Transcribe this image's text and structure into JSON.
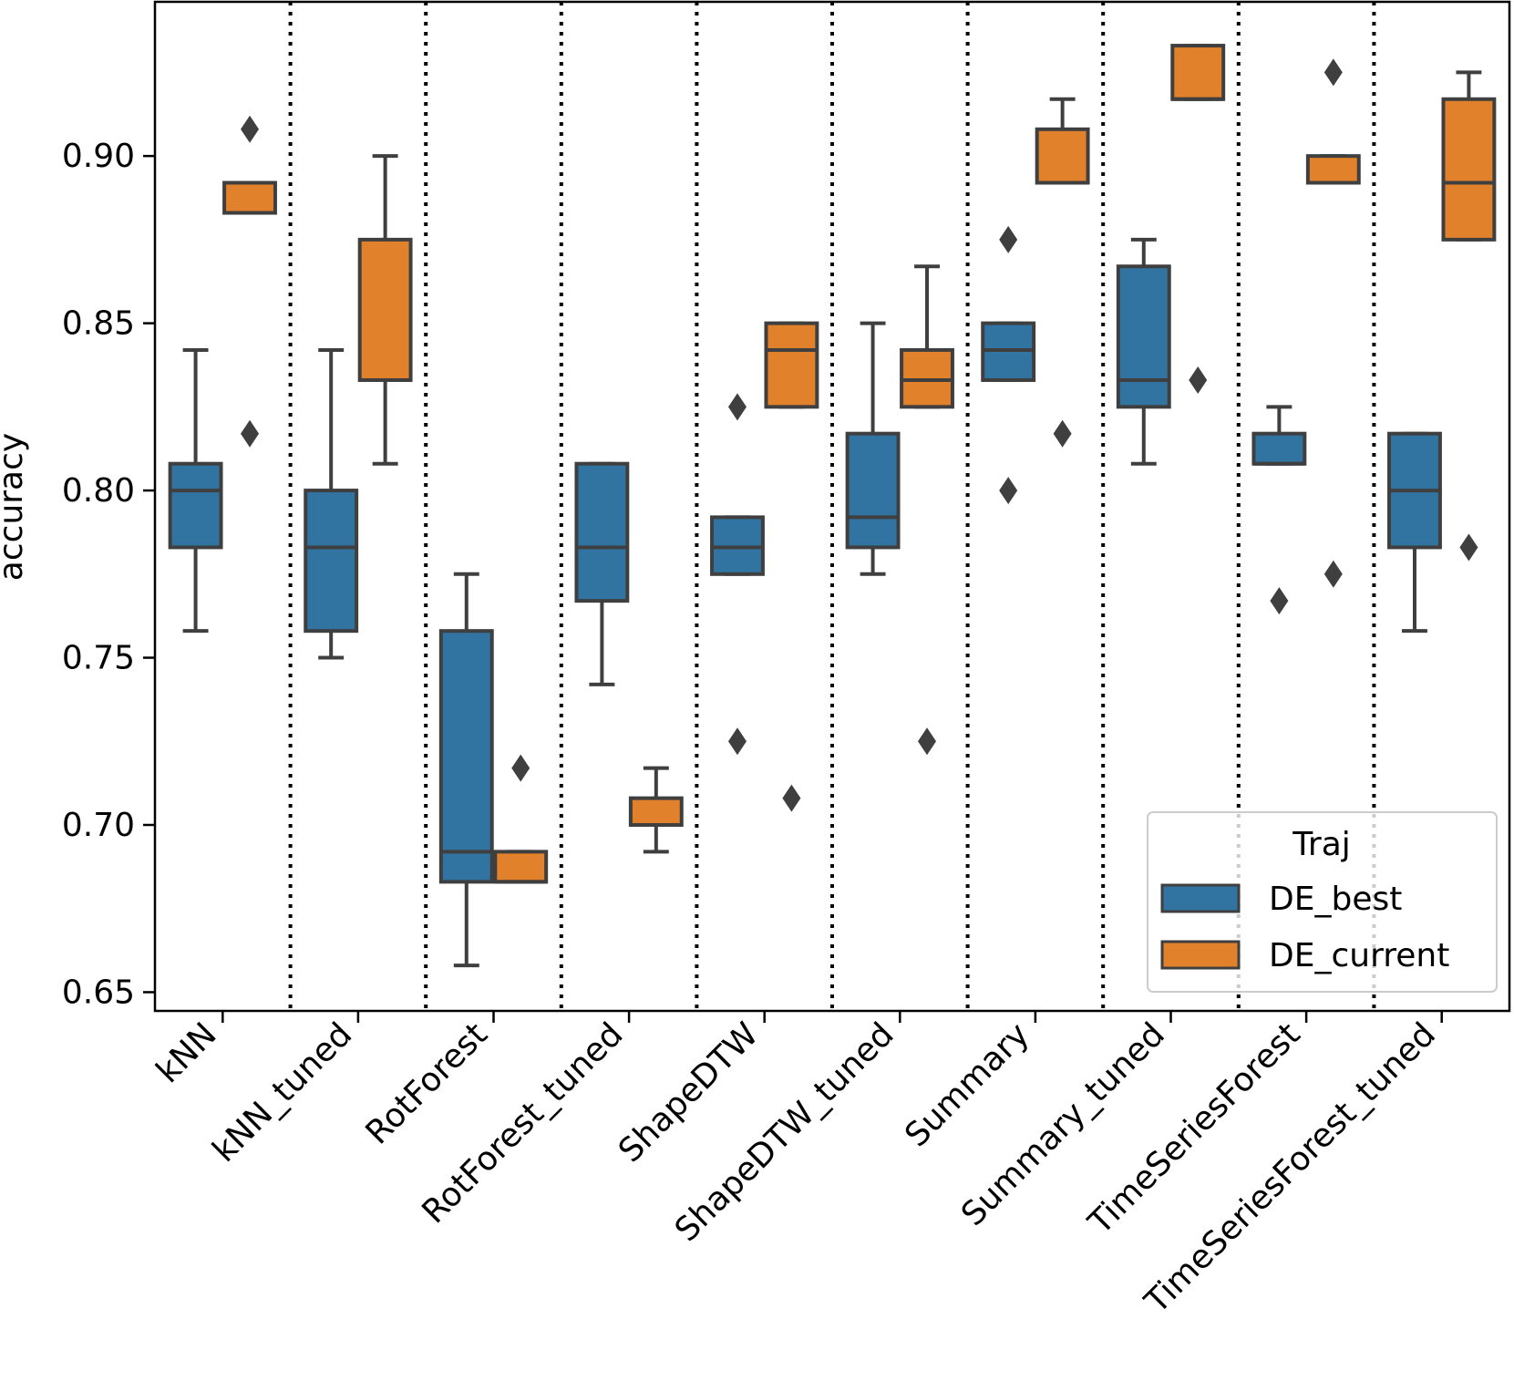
{
  "chart_data": {
    "type": "box",
    "ylabel": "accuracy",
    "xlabel": "",
    "ylim": [
      0.6444,
      0.9461
    ],
    "yticks": [
      0.65,
      0.7,
      0.75,
      0.8,
      0.85,
      0.9
    ],
    "ytick_labels": [
      "0.65",
      "0.70",
      "0.75",
      "0.80",
      "0.85",
      "0.90"
    ],
    "grid": false,
    "separators": "dotted vertical lines between categories",
    "legend": {
      "title": "Traj",
      "position": "lower-right",
      "entries": [
        "DE_best",
        "DE_current"
      ]
    },
    "categories": [
      "kNN",
      "kNN_tuned",
      "RotForest",
      "RotForest_tuned",
      "ShapeDTW",
      "ShapeDTW_tuned",
      "Summary",
      "Summary_tuned",
      "TimeSeriesForest",
      "TimeSeriesForest_tuned"
    ],
    "series": [
      {
        "name": "DE_best",
        "color": "#3274a1",
        "boxes": [
          {
            "whislo": 0.758,
            "q1": 0.783,
            "med": 0.8,
            "q3": 0.808,
            "whishi": 0.842,
            "fliers": []
          },
          {
            "whislo": 0.75,
            "q1": 0.758,
            "med": 0.783,
            "q3": 0.8,
            "whishi": 0.842,
            "fliers": []
          },
          {
            "whislo": 0.658,
            "q1": 0.683,
            "med": 0.692,
            "q3": 0.758,
            "whishi": 0.775,
            "fliers": []
          },
          {
            "whislo": 0.742,
            "q1": 0.767,
            "med": 0.783,
            "q3": 0.808,
            "whishi": 0.808,
            "fliers": []
          },
          {
            "whislo": 0.775,
            "q1": 0.775,
            "med": 0.783,
            "q3": 0.792,
            "whishi": 0.792,
            "fliers": [
              0.825,
              0.725
            ]
          },
          {
            "whislo": 0.775,
            "q1": 0.783,
            "med": 0.792,
            "q3": 0.817,
            "whishi": 0.85,
            "fliers": []
          },
          {
            "whislo": 0.833,
            "q1": 0.833,
            "med": 0.842,
            "q3": 0.85,
            "whishi": 0.85,
            "fliers": [
              0.875,
              0.8
            ]
          },
          {
            "whislo": 0.808,
            "q1": 0.825,
            "med": 0.833,
            "q3": 0.867,
            "whishi": 0.875,
            "fliers": []
          },
          {
            "whislo": 0.808,
            "q1": 0.808,
            "med": 0.808,
            "q3": 0.817,
            "whishi": 0.825,
            "fliers": [
              0.767
            ]
          },
          {
            "whislo": 0.758,
            "q1": 0.783,
            "med": 0.8,
            "q3": 0.817,
            "whishi": 0.817,
            "fliers": []
          }
        ]
      },
      {
        "name": "DE_current",
        "color": "#e1812c",
        "boxes": [
          {
            "whislo": 0.883,
            "q1": 0.883,
            "med": 0.883,
            "q3": 0.892,
            "whishi": 0.892,
            "fliers": [
              0.908,
              0.817
            ]
          },
          {
            "whislo": 0.808,
            "q1": 0.833,
            "med": 0.833,
            "q3": 0.875,
            "whishi": 0.9,
            "fliers": []
          },
          {
            "whislo": 0.683,
            "q1": 0.683,
            "med": 0.683,
            "q3": 0.692,
            "whishi": 0.692,
            "fliers": [
              0.717
            ]
          },
          {
            "whislo": 0.692,
            "q1": 0.7,
            "med": 0.7,
            "q3": 0.708,
            "whishi": 0.717,
            "fliers": []
          },
          {
            "whislo": 0.825,
            "q1": 0.825,
            "med": 0.842,
            "q3": 0.85,
            "whishi": 0.85,
            "fliers": [
              0.708
            ]
          },
          {
            "whislo": 0.825,
            "q1": 0.825,
            "med": 0.833,
            "q3": 0.842,
            "whishi": 0.867,
            "fliers": [
              0.725
            ]
          },
          {
            "whislo": 0.892,
            "q1": 0.892,
            "med": 0.892,
            "q3": 0.908,
            "whishi": 0.917,
            "fliers": [
              0.817
            ]
          },
          {
            "whislo": 0.917,
            "q1": 0.917,
            "med": 0.917,
            "q3": 0.933,
            "whishi": 0.933,
            "fliers": [
              0.833
            ]
          },
          {
            "whislo": 0.892,
            "q1": 0.892,
            "med": 0.892,
            "q3": 0.9,
            "whishi": 0.9,
            "fliers": [
              0.925,
              0.775
            ]
          },
          {
            "whislo": 0.875,
            "q1": 0.875,
            "med": 0.892,
            "q3": 0.917,
            "whishi": 0.925,
            "fliers": [
              0.783
            ]
          }
        ]
      }
    ]
  }
}
